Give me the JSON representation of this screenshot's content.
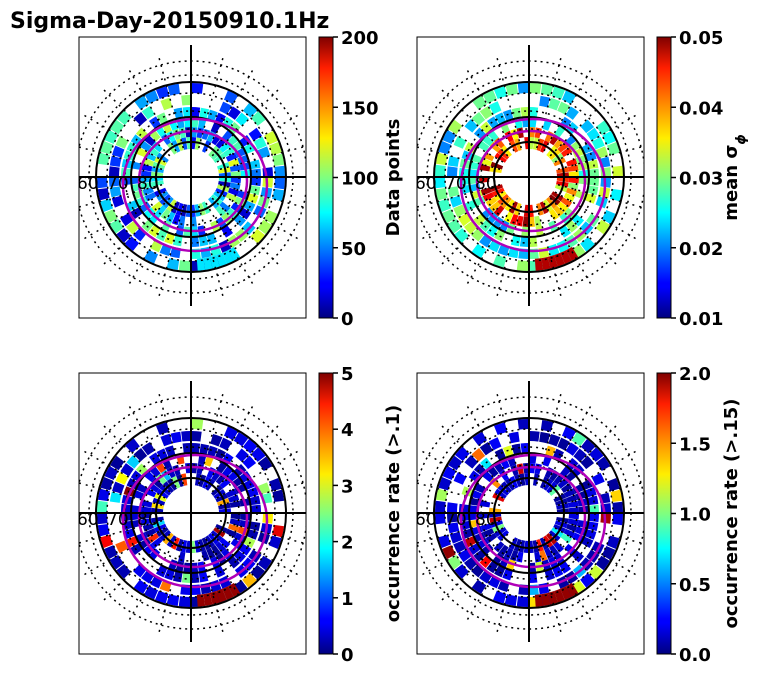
{
  "figure": {
    "title": "Sigma-Day-20150910.1Hz"
  },
  "chart_data": [
    {
      "type": "heatmap",
      "projection": "polar (magnetic latitude / MLT)",
      "latitude_labels": [
        "60",
        "70",
        "80"
      ],
      "colormap": "jet",
      "colorbar": {
        "label": "Data points",
        "ticks": [
          "0",
          "50",
          "100",
          "150",
          "200"
        ],
        "range": [
          0,
          200
        ]
      }
    },
    {
      "type": "heatmap",
      "projection": "polar (magnetic latitude / MLT)",
      "latitude_labels": [
        "60",
        "70",
        "80"
      ],
      "colormap": "jet",
      "colorbar": {
        "label": "mean σ",
        "label_subscript": "ϕ",
        "ticks": [
          "0.01",
          "0.02",
          "0.03",
          "0.04",
          "0.05"
        ],
        "range": [
          0.01,
          0.05
        ]
      }
    },
    {
      "type": "heatmap",
      "projection": "polar (magnetic latitude / MLT)",
      "latitude_labels": [
        "60",
        "70",
        "80"
      ],
      "colormap": "jet",
      "colorbar": {
        "label": "occurrence rate (>.1)",
        "ticks": [
          "0",
          "1",
          "2",
          "3",
          "4",
          "5"
        ],
        "range": [
          0,
          5
        ]
      }
    },
    {
      "type": "heatmap",
      "projection": "polar (magnetic latitude / MLT)",
      "latitude_labels": [
        "60",
        "70",
        "80"
      ],
      "colormap": "jet",
      "colorbar": {
        "label": "occurrence rate (>.15)",
        "ticks": [
          "0.0",
          "0.5",
          "1.0",
          "1.5",
          "2.0"
        ],
        "range": [
          0,
          2
        ]
      }
    }
  ]
}
